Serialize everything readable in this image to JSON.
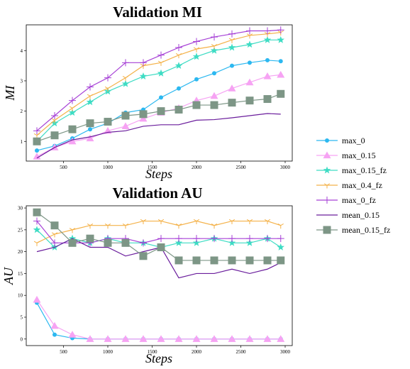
{
  "chart_data": [
    {
      "type": "line",
      "title": "Validation MI",
      "xlabel": "Steps",
      "ylabel": "MI",
      "xlim": [
        80,
        3080
      ],
      "ylim": [
        0.35,
        4.85
      ],
      "xticks": [
        500,
        1000,
        1500,
        2000,
        2500,
        3000
      ],
      "yticks": [
        1,
        2,
        3,
        4
      ],
      "x": [
        200,
        400,
        600,
        800,
        1000,
        1200,
        1400,
        1600,
        1800,
        2000,
        2200,
        2400,
        2600,
        2800,
        2950
      ],
      "series": [
        {
          "name": "max_0",
          "color": "#2cb8f0",
          "marker": "circle",
          "values": [
            0.7,
            0.85,
            1.1,
            1.4,
            1.6,
            1.95,
            2.05,
            2.45,
            2.75,
            3.05,
            3.25,
            3.5,
            3.6,
            3.68,
            3.65
          ]
        },
        {
          "name": "max_0.15",
          "color": "#f6a3f3",
          "marker": "triangle",
          "values": [
            0.5,
            0.8,
            1.0,
            1.1,
            1.35,
            1.5,
            1.75,
            1.95,
            2.1,
            2.35,
            2.5,
            2.75,
            2.95,
            3.15,
            3.2
          ]
        },
        {
          "name": "max_0.15_fz",
          "color": "#3edcc4",
          "marker": "star",
          "values": [
            1.0,
            1.6,
            1.95,
            2.3,
            2.65,
            2.9,
            3.15,
            3.25,
            3.5,
            3.8,
            4.0,
            4.1,
            4.2,
            4.35,
            4.35
          ]
        },
        {
          "name": "max_0.4_fz",
          "color": "#f4b24a",
          "marker": "tri",
          "values": [
            1.2,
            1.7,
            2.1,
            2.5,
            2.75,
            3.1,
            3.5,
            3.6,
            3.85,
            4.05,
            4.15,
            4.35,
            4.5,
            4.55,
            4.6
          ]
        },
        {
          "name": "max_0_fz",
          "color": "#a640d6",
          "marker": "plus",
          "values": [
            1.35,
            1.85,
            2.35,
            2.8,
            3.1,
            3.6,
            3.6,
            3.85,
            4.1,
            4.3,
            4.45,
            4.55,
            4.65,
            4.65,
            4.68
          ]
        },
        {
          "name": "mean_0.15",
          "color": "#6a1d9c",
          "marker": "none",
          "values": [
            0.45,
            0.8,
            1.05,
            1.15,
            1.3,
            1.35,
            1.5,
            1.55,
            1.55,
            1.7,
            1.72,
            1.78,
            1.85,
            1.92,
            1.9
          ]
        },
        {
          "name": "mean_0.15_fz",
          "color": "#7d9686",
          "marker": "square",
          "values": [
            1.0,
            1.2,
            1.4,
            1.6,
            1.65,
            1.85,
            1.9,
            2.0,
            2.05,
            2.2,
            2.2,
            2.28,
            2.35,
            2.4,
            2.57
          ]
        }
      ]
    },
    {
      "type": "line",
      "title": "Validation AU",
      "xlabel": "Steps",
      "ylabel": "AU",
      "xlim": [
        80,
        3080
      ],
      "ylim": [
        -1.5,
        30.5
      ],
      "xticks": [
        500,
        1000,
        1500,
        2000,
        2500,
        3000
      ],
      "yticks": [
        0,
        5,
        10,
        15,
        20,
        25,
        30
      ],
      "x": [
        200,
        400,
        600,
        800,
        1000,
        1200,
        1400,
        1600,
        1800,
        2000,
        2200,
        2400,
        2600,
        2800,
        2950
      ],
      "series": [
        {
          "name": "max_0",
          "color": "#2cb8f0",
          "marker": "circle",
          "values": [
            8.3,
            1.0,
            0.2,
            0,
            0,
            0,
            0,
            0,
            0,
            0,
            0,
            0,
            0,
            0,
            0
          ]
        },
        {
          "name": "max_0.15",
          "color": "#f6a3f3",
          "marker": "triangle",
          "values": [
            9.0,
            3.0,
            1.0,
            0,
            0,
            0,
            0,
            0,
            0,
            0,
            0,
            0,
            0,
            0,
            0
          ]
        },
        {
          "name": "max_0.15_fz",
          "color": "#3edcc4",
          "marker": "star",
          "values": [
            25,
            21,
            23,
            22,
            23,
            22,
            22,
            21,
            22,
            22,
            23,
            22,
            22,
            23,
            21
          ]
        },
        {
          "name": "max_0.4_fz",
          "color": "#f4b24a",
          "marker": "tri",
          "values": [
            22,
            24,
            25,
            26,
            26,
            26,
            27,
            27,
            26,
            27,
            26,
            27,
            27,
            27,
            26
          ]
        },
        {
          "name": "max_0_fz",
          "color": "#a640d6",
          "marker": "plus",
          "values": [
            27,
            22,
            22,
            22,
            23,
            23,
            22,
            23,
            23,
            23,
            23,
            23,
            23,
            23,
            23
          ]
        },
        {
          "name": "mean_0.15",
          "color": "#6a1d9c",
          "marker": "none",
          "values": [
            20,
            21,
            23,
            21,
            21,
            19,
            20,
            21,
            14,
            15,
            15,
            16,
            15,
            16,
            17.5
          ]
        },
        {
          "name": "mean_0.15_fz",
          "color": "#7d9686",
          "marker": "square",
          "values": [
            29,
            26,
            22,
            23,
            22,
            22,
            19,
            21,
            18,
            18,
            18,
            18,
            18,
            18,
            18
          ]
        }
      ]
    }
  ],
  "legend": {
    "placement": "right",
    "items": [
      {
        "label": "max_0",
        "color": "#2cb8f0",
        "marker": "circle"
      },
      {
        "label": "max_0.15",
        "color": "#f6a3f3",
        "marker": "triangle"
      },
      {
        "label": "max_0.15_fz",
        "color": "#3edcc4",
        "marker": "star"
      },
      {
        "label": "max_0.4_fz",
        "color": "#f4b24a",
        "marker": "tri"
      },
      {
        "label": "max_0_fz",
        "color": "#a640d6",
        "marker": "plus"
      },
      {
        "label": "mean_0.15",
        "color": "#6a1d9c",
        "marker": "none"
      },
      {
        "label": "mean_0.15_fz",
        "color": "#7d9686",
        "marker": "square"
      }
    ]
  }
}
